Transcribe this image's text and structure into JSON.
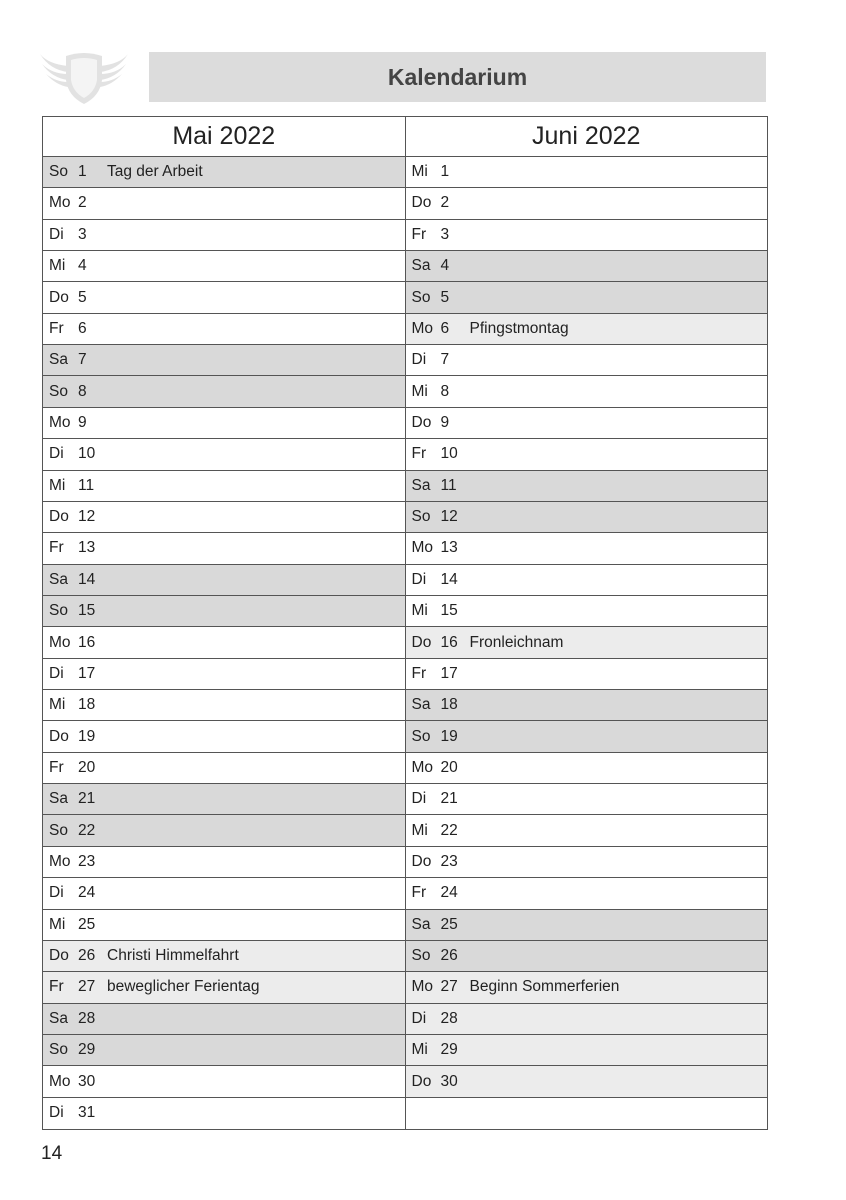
{
  "header": {
    "title": "Kalendarium",
    "logo": "winged-shield-logo"
  },
  "colors": {
    "weekend": "#d9d9d9",
    "holiday": "#ececec",
    "title_bg": "#dcdcdc"
  },
  "months": [
    {
      "title": "Mai 2022",
      "days": [
        {
          "day": "So",
          "date": "1",
          "note": "Tag der Arbeit",
          "type": "weekend"
        },
        {
          "day": "Mo",
          "date": "2",
          "note": "",
          "type": "normal"
        },
        {
          "day": "Di",
          "date": "3",
          "note": "",
          "type": "normal"
        },
        {
          "day": "Mi",
          "date": "4",
          "note": "",
          "type": "normal"
        },
        {
          "day": "Do",
          "date": "5",
          "note": "",
          "type": "normal"
        },
        {
          "day": "Fr",
          "date": "6",
          "note": "",
          "type": "normal"
        },
        {
          "day": "Sa",
          "date": "7",
          "note": "",
          "type": "weekend"
        },
        {
          "day": "So",
          "date": "8",
          "note": "",
          "type": "weekend"
        },
        {
          "day": "Mo",
          "date": "9",
          "note": "",
          "type": "normal"
        },
        {
          "day": "Di",
          "date": "10",
          "note": "",
          "type": "normal"
        },
        {
          "day": "Mi",
          "date": "11",
          "note": "",
          "type": "normal"
        },
        {
          "day": "Do",
          "date": "12",
          "note": "",
          "type": "normal"
        },
        {
          "day": "Fr",
          "date": "13",
          "note": "",
          "type": "normal"
        },
        {
          "day": "Sa",
          "date": "14",
          "note": "",
          "type": "weekend"
        },
        {
          "day": "So",
          "date": "15",
          "note": "",
          "type": "weekend"
        },
        {
          "day": "Mo",
          "date": "16",
          "note": "",
          "type": "normal"
        },
        {
          "day": "Di",
          "date": "17",
          "note": "",
          "type": "normal"
        },
        {
          "day": "Mi",
          "date": "18",
          "note": "",
          "type": "normal"
        },
        {
          "day": "Do",
          "date": "19",
          "note": "",
          "type": "normal"
        },
        {
          "day": "Fr",
          "date": "20",
          "note": "",
          "type": "normal"
        },
        {
          "day": "Sa",
          "date": "21",
          "note": "",
          "type": "weekend"
        },
        {
          "day": "So",
          "date": "22",
          "note": "",
          "type": "weekend"
        },
        {
          "day": "Mo",
          "date": "23",
          "note": "",
          "type": "normal"
        },
        {
          "day": "Di",
          "date": "24",
          "note": "",
          "type": "normal"
        },
        {
          "day": "Mi",
          "date": "25",
          "note": "",
          "type": "normal"
        },
        {
          "day": "Do",
          "date": "26",
          "note": "Christi Himmelfahrt",
          "type": "holiday"
        },
        {
          "day": "Fr",
          "date": "27",
          "note": "beweglicher Ferientag",
          "type": "holiday"
        },
        {
          "day": "Sa",
          "date": "28",
          "note": "",
          "type": "weekend"
        },
        {
          "day": "So",
          "date": "29",
          "note": "",
          "type": "weekend"
        },
        {
          "day": "Mo",
          "date": "30",
          "note": "",
          "type": "normal"
        },
        {
          "day": "Di",
          "date": "31",
          "note": "",
          "type": "normal"
        }
      ]
    },
    {
      "title": "Juni 2022",
      "days": [
        {
          "day": "Mi",
          "date": "1",
          "note": "",
          "type": "normal"
        },
        {
          "day": "Do",
          "date": "2",
          "note": "",
          "type": "normal"
        },
        {
          "day": "Fr",
          "date": "3",
          "note": "",
          "type": "normal"
        },
        {
          "day": "Sa",
          "date": "4",
          "note": "",
          "type": "weekend"
        },
        {
          "day": "So",
          "date": "5",
          "note": "",
          "type": "weekend"
        },
        {
          "day": "Mo",
          "date": "6",
          "note": "Pfingstmontag",
          "type": "holiday"
        },
        {
          "day": "Di",
          "date": "7",
          "note": "",
          "type": "normal"
        },
        {
          "day": "Mi",
          "date": "8",
          "note": "",
          "type": "normal"
        },
        {
          "day": "Do",
          "date": "9",
          "note": "",
          "type": "normal"
        },
        {
          "day": "Fr",
          "date": "10",
          "note": "",
          "type": "normal"
        },
        {
          "day": "Sa",
          "date": "11",
          "note": "",
          "type": "weekend"
        },
        {
          "day": "So",
          "date": "12",
          "note": "",
          "type": "weekend"
        },
        {
          "day": "Mo",
          "date": "13",
          "note": "",
          "type": "normal"
        },
        {
          "day": "Di",
          "date": "14",
          "note": "",
          "type": "normal"
        },
        {
          "day": "Mi",
          "date": "15",
          "note": "",
          "type": "normal"
        },
        {
          "day": "Do",
          "date": "16",
          "note": "Fronleichnam",
          "type": "holiday"
        },
        {
          "day": "Fr",
          "date": "17",
          "note": "",
          "type": "normal"
        },
        {
          "day": "Sa",
          "date": "18",
          "note": "",
          "type": "weekend"
        },
        {
          "day": "So",
          "date": "19",
          "note": "",
          "type": "weekend"
        },
        {
          "day": "Mo",
          "date": "20",
          "note": "",
          "type": "normal"
        },
        {
          "day": "Di",
          "date": "21",
          "note": "",
          "type": "normal"
        },
        {
          "day": "Mi",
          "date": "22",
          "note": "",
          "type": "normal"
        },
        {
          "day": "Do",
          "date": "23",
          "note": "",
          "type": "normal"
        },
        {
          "day": "Fr",
          "date": "24",
          "note": "",
          "type": "normal"
        },
        {
          "day": "Sa",
          "date": "25",
          "note": "",
          "type": "weekend"
        },
        {
          "day": "So",
          "date": "26",
          "note": "",
          "type": "weekend"
        },
        {
          "day": "Mo",
          "date": "27",
          "note": "Beginn Sommerferien",
          "type": "holiday"
        },
        {
          "day": "Di",
          "date": "28",
          "note": "",
          "type": "holiday"
        },
        {
          "day": "Mi",
          "date": "29",
          "note": "",
          "type": "holiday"
        },
        {
          "day": "Do",
          "date": "30",
          "note": "",
          "type": "holiday"
        }
      ]
    }
  ],
  "footer": {
    "page_number": "14"
  }
}
